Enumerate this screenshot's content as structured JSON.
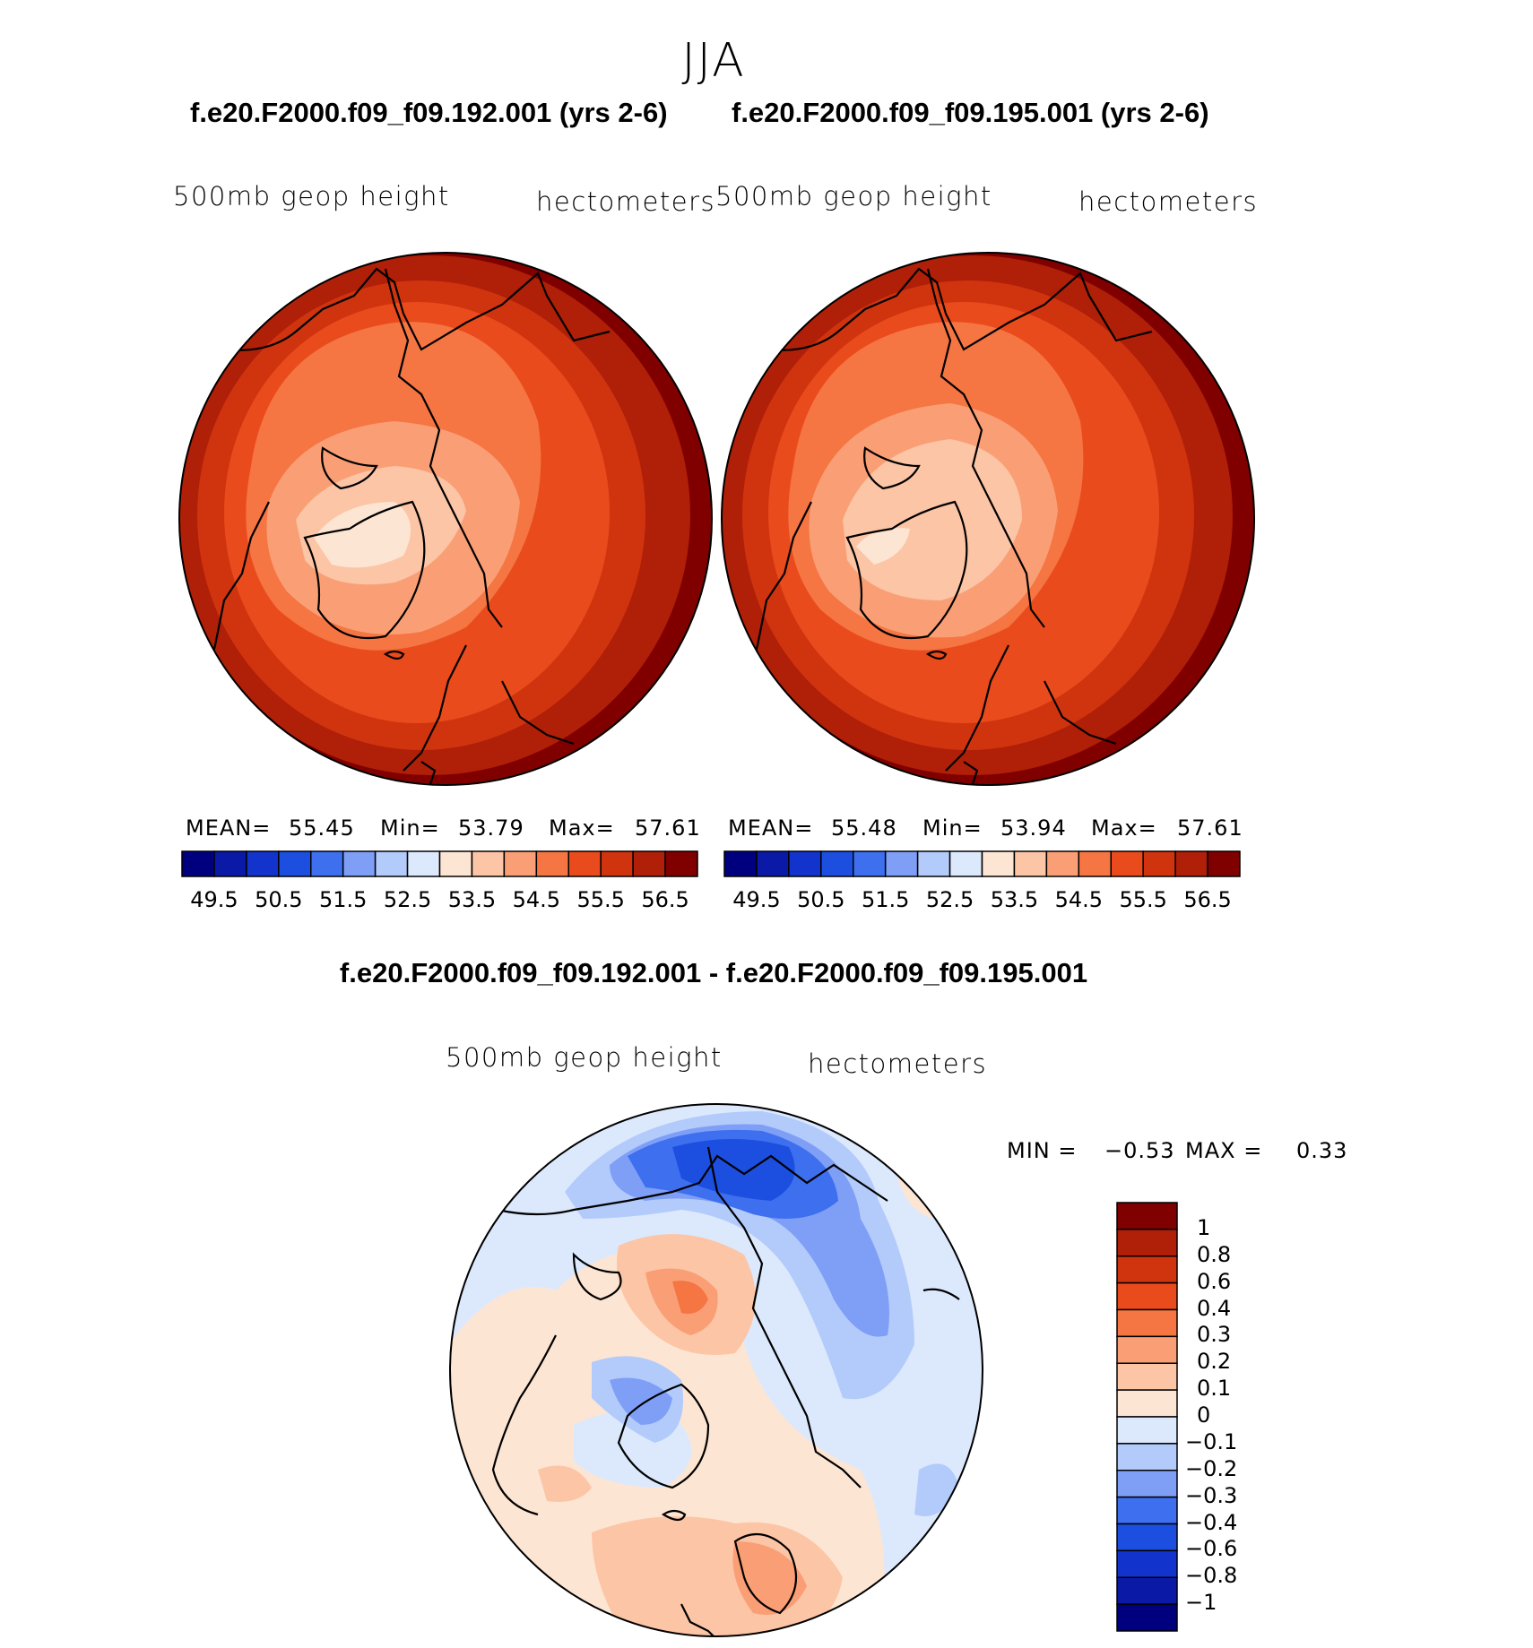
{
  "figure": {
    "season": "JJA",
    "panels": [
      {
        "case": "f.e20.F2000.f09_f09.192.001 (yrs 2-6)",
        "variable": "500mb geop height",
        "units": "hectometers",
        "stats": {
          "mean_label": "MEAN=",
          "mean": "55.45",
          "min_label": "Min=",
          "min": "53.79",
          "max_label": "Max=",
          "max": "57.61"
        }
      },
      {
        "case": "f.e20.F2000.f09_f09.195.001 (yrs 2-6)",
        "variable": "500mb geop height",
        "units": "hectometers",
        "stats": {
          "mean_label": "MEAN=",
          "mean": "55.48",
          "min_label": "Min=",
          "min": "53.94",
          "max_label": "Max=",
          "max": "57.61"
        }
      }
    ],
    "difference": {
      "title": "f.e20.F2000.f09_f09.192.001 - f.e20.F2000.f09_f09.195.001",
      "variable": "500mb geop height",
      "units": "hectometers",
      "min_label": "MIN =",
      "min": "−0.53",
      "max_label": "MAX =",
      "max": "0.33"
    }
  },
  "chart_data": [
    {
      "type": "heatmap",
      "title": "f.e20.F2000.f09_f09.192.001 (yrs 2-6)",
      "projection": "north polar stereographic",
      "variable": "500mb geop height",
      "units": "hectometers",
      "mean": 55.45,
      "min": 53.79,
      "max": 57.61,
      "colorbar": {
        "levels": [
          49.5,
          50.5,
          51.5,
          52.5,
          53.5,
          54.5,
          55.5,
          56.5
        ],
        "tick_labels": [
          "49.5",
          "50.5",
          "51.5",
          "52.5",
          "53.5",
          "54.5",
          "55.5",
          "56.5"
        ],
        "colors": [
          "#00007f",
          "#0a1aa6",
          "#1234cc",
          "#1c4fe0",
          "#3e6fef",
          "#7f9ff7",
          "#b3cbfb",
          "#dce9fd",
          "#fde5d3",
          "#fcc5a6",
          "#fa9f75",
          "#f57543",
          "#ea4b1c",
          "#d0340f",
          "#b01f08",
          "#800000"
        ]
      }
    },
    {
      "type": "heatmap",
      "title": "f.e20.F2000.f09_f09.195.001 (yrs 2-6)",
      "projection": "north polar stereographic",
      "variable": "500mb geop height",
      "units": "hectometers",
      "mean": 55.48,
      "min": 53.94,
      "max": 57.61,
      "colorbar": {
        "levels": [
          49.5,
          50.5,
          51.5,
          52.5,
          53.5,
          54.5,
          55.5,
          56.5
        ],
        "tick_labels": [
          "49.5",
          "50.5",
          "51.5",
          "52.5",
          "53.5",
          "54.5",
          "55.5",
          "56.5"
        ],
        "colors": [
          "#00007f",
          "#0a1aa6",
          "#1234cc",
          "#1c4fe0",
          "#3e6fef",
          "#7f9ff7",
          "#b3cbfb",
          "#dce9fd",
          "#fde5d3",
          "#fcc5a6",
          "#fa9f75",
          "#f57543",
          "#ea4b1c",
          "#d0340f",
          "#b01f08",
          "#800000"
        ]
      }
    },
    {
      "type": "heatmap",
      "title": "f.e20.F2000.f09_f09.192.001 - f.e20.F2000.f09_f09.195.001",
      "projection": "north polar stereographic",
      "variable": "500mb geop height",
      "units": "hectometers",
      "min": -0.53,
      "max": 0.33,
      "colorbar": {
        "levels": [
          1,
          0.8,
          0.6,
          0.4,
          0.3,
          0.2,
          0.1,
          0,
          -0.1,
          -0.2,
          -0.3,
          -0.4,
          -0.6,
          -0.8,
          -1
        ],
        "tick_labels": [
          "1",
          "0.8",
          "0.6",
          "0.4",
          "0.3",
          "0.2",
          "0.1",
          "0",
          "−0.1",
          "−0.2",
          "−0.3",
          "−0.4",
          "−0.6",
          "−0.8",
          "−1"
        ],
        "colors": [
          "#800000",
          "#b01f08",
          "#d0340f",
          "#ea4b1c",
          "#f57543",
          "#fa9f75",
          "#fcc5a6",
          "#fde5d3",
          "#dce9fd",
          "#b3cbfb",
          "#7f9ff7",
          "#3e6fef",
          "#1c4fe0",
          "#1234cc",
          "#0a1aa6",
          "#00007f"
        ]
      }
    }
  ]
}
